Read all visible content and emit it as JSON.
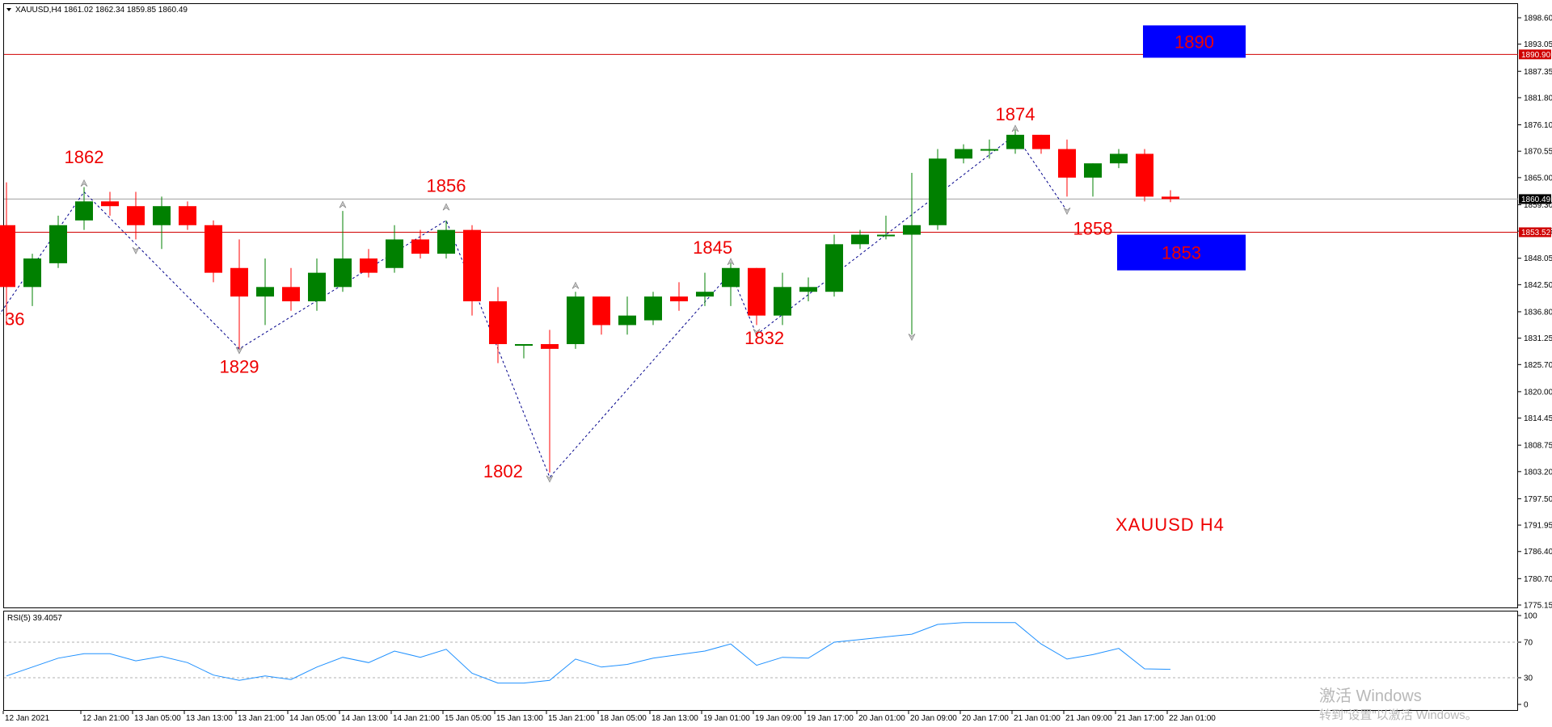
{
  "header": {
    "symbol_info": "XAUUSD,H4  1861.02 1862.34 1859.85 1860.49",
    "chart_label": "XAUUSD  H4"
  },
  "colors": {
    "bull": "#008000",
    "bear": "#ff0000",
    "level_line": "#d00000",
    "zone_fill": "#0000ff",
    "zigzag": "#00008b",
    "rsi_line": "#1e90ff",
    "label_red": "#ee0000"
  },
  "chart_data": {
    "type": "candlestick",
    "price_axis": {
      "min": 1775.15,
      "max": 1898.6,
      "ticks": [
        "1898.60",
        "1893.05",
        "1887.35",
        "1881.80",
        "1876.10",
        "1870.55",
        "1865.00",
        "1859.30",
        "1853.75",
        "1848.05",
        "1842.50",
        "1836.80",
        "1831.25",
        "1825.70",
        "1820.00",
        "1814.45",
        "1808.75",
        "1803.20",
        "1797.50",
        "1791.95",
        "1786.40",
        "1780.70",
        "1775.15"
      ]
    },
    "current_price": "1860.49",
    "levels": [
      {
        "price": 1890.9,
        "label": "1890.90"
      },
      {
        "price": 1853.52,
        "label": "1853.52"
      }
    ],
    "zones": [
      {
        "label": "1890",
        "top": 1897.0,
        "bottom": 1890.2
      },
      {
        "label": "1853",
        "top": 1853.0,
        "bottom": 1845.5
      }
    ],
    "candles": [
      {
        "o": 1855,
        "h": 1864,
        "l": 1834,
        "c": 1842
      },
      {
        "o": 1842,
        "h": 1849,
        "l": 1838,
        "c": 1848
      },
      {
        "o": 1847,
        "h": 1857,
        "l": 1846,
        "c": 1855
      },
      {
        "o": 1856,
        "h": 1863,
        "l": 1854,
        "c": 1860
      },
      {
        "o": 1860,
        "h": 1862,
        "l": 1857,
        "c": 1859
      },
      {
        "o": 1859,
        "h": 1862,
        "l": 1852,
        "c": 1855
      },
      {
        "o": 1855,
        "h": 1861,
        "l": 1850,
        "c": 1859
      },
      {
        "o": 1859,
        "h": 1860,
        "l": 1854,
        "c": 1855
      },
      {
        "o": 1855,
        "h": 1856,
        "l": 1843,
        "c": 1845
      },
      {
        "o": 1846,
        "h": 1852,
        "l": 1829,
        "c": 1840
      },
      {
        "o": 1840,
        "h": 1848,
        "l": 1834,
        "c": 1842
      },
      {
        "o": 1842,
        "h": 1846,
        "l": 1837,
        "c": 1839
      },
      {
        "o": 1839,
        "h": 1848,
        "l": 1837,
        "c": 1845
      },
      {
        "o": 1842,
        "h": 1858,
        "l": 1841,
        "c": 1848
      },
      {
        "o": 1848,
        "h": 1850,
        "l": 1844,
        "c": 1845
      },
      {
        "o": 1846,
        "h": 1855,
        "l": 1845,
        "c": 1852
      },
      {
        "o": 1852,
        "h": 1854,
        "l": 1848,
        "c": 1849
      },
      {
        "o": 1849,
        "h": 1856,
        "l": 1848,
        "c": 1854
      },
      {
        "o": 1854,
        "h": 1855,
        "l": 1836,
        "c": 1839
      },
      {
        "o": 1839,
        "h": 1842,
        "l": 1826,
        "c": 1830
      },
      {
        "o": 1830,
        "h": 1830,
        "l": 1827,
        "c": 1830
      },
      {
        "o": 1830,
        "h": 1833,
        "l": 1803,
        "c": 1829
      },
      {
        "o": 1830,
        "h": 1841,
        "l": 1829,
        "c": 1840
      },
      {
        "o": 1840,
        "h": 1840,
        "l": 1832,
        "c": 1834
      },
      {
        "o": 1834,
        "h": 1840,
        "l": 1832,
        "c": 1836
      },
      {
        "o": 1835,
        "h": 1841,
        "l": 1834,
        "c": 1840
      },
      {
        "o": 1840,
        "h": 1843,
        "l": 1837,
        "c": 1839
      },
      {
        "o": 1840,
        "h": 1845,
        "l": 1838,
        "c": 1841
      },
      {
        "o": 1842,
        "h": 1847,
        "l": 1838,
        "c": 1846
      },
      {
        "o": 1846,
        "h": 1846,
        "l": 1834,
        "c": 1836
      },
      {
        "o": 1836,
        "h": 1845,
        "l": 1834,
        "c": 1842
      },
      {
        "o": 1841,
        "h": 1844,
        "l": 1839,
        "c": 1842
      },
      {
        "o": 1841,
        "h": 1853,
        "l": 1840,
        "c": 1851
      },
      {
        "o": 1851,
        "h": 1854,
        "l": 1850,
        "c": 1853
      },
      {
        "o": 1853,
        "h": 1857,
        "l": 1852,
        "c": 1853
      },
      {
        "o": 1853,
        "h": 1866,
        "l": 1832,
        "c": 1855
      },
      {
        "o": 1855,
        "h": 1871,
        "l": 1854,
        "c": 1869
      },
      {
        "o": 1869,
        "h": 1872,
        "l": 1868,
        "c": 1871
      },
      {
        "o": 1871,
        "h": 1873,
        "l": 1869,
        "c": 1871
      },
      {
        "o": 1871,
        "h": 1875,
        "l": 1870,
        "c": 1874
      },
      {
        "o": 1874,
        "h": 1874,
        "l": 1870,
        "c": 1871
      },
      {
        "o": 1871,
        "h": 1873,
        "l": 1861,
        "c": 1865
      },
      {
        "o": 1865,
        "h": 1868,
        "l": 1861,
        "c": 1868
      },
      {
        "o": 1868,
        "h": 1871,
        "l": 1867,
        "c": 1870
      },
      {
        "o": 1870,
        "h": 1871,
        "l": 1860,
        "c": 1861
      },
      {
        "o": 1861,
        "h": 1862.34,
        "l": 1859.85,
        "c": 1860.49
      }
    ],
    "zigzag": [
      {
        "i": -0.3,
        "p": 1836
      },
      {
        "i": 3,
        "p": 1862
      },
      {
        "i": 9,
        "p": 1829
      },
      {
        "i": 17,
        "p": 1856
      },
      {
        "i": 21,
        "p": 1802
      },
      {
        "i": 28,
        "p": 1845
      },
      {
        "i": 29,
        "p": 1832
      },
      {
        "i": 39,
        "p": 1874
      },
      {
        "i": 41,
        "p": 1858
      }
    ],
    "arrows": [
      {
        "i": 3,
        "p": 1864,
        "dir": "up"
      },
      {
        "i": 5,
        "p": 1849.5,
        "dir": "down"
      },
      {
        "i": 9,
        "p": 1828.5,
        "dir": "down"
      },
      {
        "i": 13,
        "p": 1859.5,
        "dir": "up"
      },
      {
        "i": 17,
        "p": 1859,
        "dir": "up"
      },
      {
        "i": 21,
        "p": 1801.5,
        "dir": "down"
      },
      {
        "i": 22,
        "p": 1842.5,
        "dir": "up"
      },
      {
        "i": 28,
        "p": 1847.5,
        "dir": "up"
      },
      {
        "i": 29,
        "p": 1832.3,
        "dir": "down"
      },
      {
        "i": 35,
        "p": 1831.3,
        "dir": "down"
      },
      {
        "i": 39,
        "p": 1875.5,
        "dir": "up"
      },
      {
        "i": 41,
        "p": 1857.8,
        "dir": "down"
      }
    ],
    "pivot_labels": [
      {
        "text": "36",
        "i": -0.5,
        "p": 1834,
        "anchor": "start"
      },
      {
        "text": "1862",
        "i": 3,
        "p": 1868,
        "anchor": "middle"
      },
      {
        "text": "1829",
        "i": 9,
        "p": 1824,
        "anchor": "middle"
      },
      {
        "text": "1856",
        "i": 17,
        "p": 1862,
        "anchor": "middle"
      },
      {
        "text": "1802",
        "i": 19.2,
        "p": 1802,
        "anchor": "middle"
      },
      {
        "text": "1845",
        "i": 27.3,
        "p": 1849,
        "anchor": "middle"
      },
      {
        "text": "1832",
        "i": 29.3,
        "p": 1830,
        "anchor": "middle"
      },
      {
        "text": "1874",
        "i": 39,
        "p": 1877,
        "anchor": "middle"
      },
      {
        "text": "1858",
        "i": 42,
        "p": 1853,
        "anchor": "middle"
      }
    ],
    "rsi": {
      "label": "RSI(5) 39.4057",
      "axis_ticks": [
        "100",
        "70",
        "30",
        "0"
      ],
      "levels": [
        70,
        30
      ],
      "values": [
        32,
        42,
        52,
        57,
        57,
        49,
        54,
        47,
        33,
        27,
        32,
        28,
        42,
        53,
        47,
        60,
        53,
        62,
        35,
        24,
        24,
        27,
        51,
        42,
        45,
        52,
        56,
        60,
        68,
        44,
        53,
        52,
        70,
        73,
        76,
        79,
        90,
        92,
        92,
        92,
        68,
        51,
        56,
        63,
        40,
        39.4
      ]
    },
    "time_axis": {
      "labels": [
        {
          "text": "12 Jan 2021",
          "i": 0
        },
        {
          "text": "12 Jan 21:00",
          "i": 3
        },
        {
          "text": "13 Jan 05:00",
          "i": 5
        },
        {
          "text": "13 Jan 13:00",
          "i": 7
        },
        {
          "text": "13 Jan 21:00",
          "i": 9
        },
        {
          "text": "14 Jan 05:00",
          "i": 11
        },
        {
          "text": "14 Jan 13:00",
          "i": 13
        },
        {
          "text": "14 Jan 21:00",
          "i": 15
        },
        {
          "text": "15 Jan 05:00",
          "i": 17
        },
        {
          "text": "15 Jan 13:00",
          "i": 19
        },
        {
          "text": "15 Jan 21:00",
          "i": 21
        },
        {
          "text": "18 Jan 05:00",
          "i": 23
        },
        {
          "text": "18 Jan 13:00",
          "i": 25
        },
        {
          "text": "19 Jan 01:00",
          "i": 27
        },
        {
          "text": "19 Jan 09:00",
          "i": 29
        },
        {
          "text": "19 Jan 17:00",
          "i": 31
        },
        {
          "text": "20 Jan 01:00",
          "i": 33
        },
        {
          "text": "20 Jan 09:00",
          "i": 35
        },
        {
          "text": "20 Jan 17:00",
          "i": 37
        },
        {
          "text": "21 Jan 01:00",
          "i": 39
        },
        {
          "text": "21 Jan 09:00",
          "i": 41
        },
        {
          "text": "21 Jan 17:00",
          "i": 43
        },
        {
          "text": "22 Jan 01:00",
          "i": 45
        }
      ]
    }
  },
  "watermark": {
    "line1": "激活 Windows",
    "line2": "转到\"设置\"以激活 Windows。"
  }
}
